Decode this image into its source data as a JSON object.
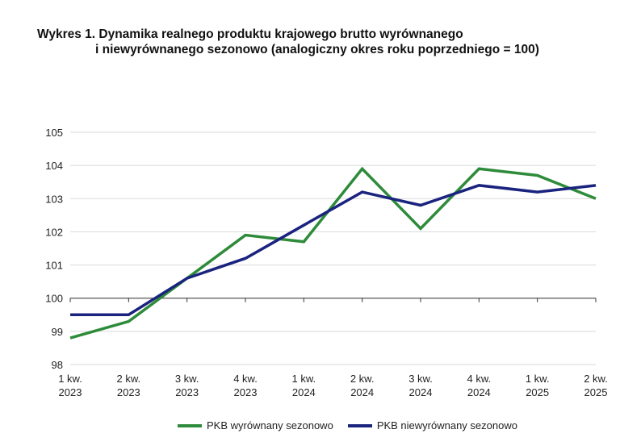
{
  "chart_data": {
    "type": "line",
    "title_line1": "Wykres 1. Dynamika realnego produktu krajowego brutto wyrównanego",
    "title_line2": "i niewyrównanego sezonowo (analogiczny okres roku poprzedniego = 100)",
    "categories": [
      [
        "1 kw.",
        "2023"
      ],
      [
        "2 kw.",
        "2023"
      ],
      [
        "3 kw.",
        "2023"
      ],
      [
        "4 kw.",
        "2023"
      ],
      [
        "1 kw.",
        "2024"
      ],
      [
        "2 kw.",
        "2024"
      ],
      [
        "3 kw.",
        "2024"
      ],
      [
        "4 kw.",
        "2024"
      ],
      [
        "1 kw.",
        "2025"
      ],
      [
        "2 kw.",
        "2025"
      ]
    ],
    "ylim": [
      98,
      105
    ],
    "yticks": [
      98,
      99,
      100,
      101,
      102,
      103,
      104,
      105
    ],
    "x_axis_crosses_at": 100,
    "grid": true,
    "legend_placement": "bottom",
    "series": [
      {
        "name": "PKB wyrównany sezonowo",
        "color": "#2e8b3a",
        "values": [
          98.8,
          99.3,
          100.6,
          101.9,
          101.7,
          103.9,
          102.1,
          103.9,
          103.7,
          103.0
        ]
      },
      {
        "name": "PKB niewyrównany sezonowo",
        "color": "#1a237e",
        "values": [
          99.5,
          99.5,
          100.6,
          101.2,
          102.2,
          103.2,
          102.8,
          103.4,
          103.2,
          103.4
        ]
      }
    ]
  }
}
